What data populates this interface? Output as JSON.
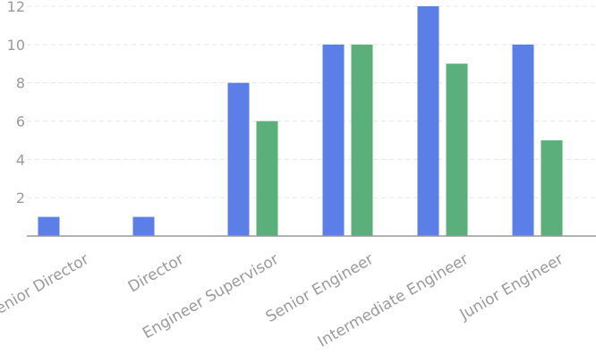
{
  "chart_data": {
    "type": "bar",
    "categories": [
      "Senior Director",
      "Director",
      "Engineer Supervisor",
      "Senior Engineer",
      "Intermediate Engineer",
      "Junior Engineer"
    ],
    "series": [
      {
        "color": "#5b7fe6",
        "values": [
          1,
          1,
          8,
          10,
          12,
          10
        ]
      },
      {
        "color": "#5aaf7b",
        "values": [
          0,
          0,
          6,
          10,
          9,
          5
        ]
      }
    ],
    "y_ticks": [
      "2",
      "4",
      "6",
      "8",
      "10",
      "12"
    ],
    "ylim": [
      0,
      12
    ],
    "grid": "horizontal dashed",
    "legend": "none",
    "colors": {
      "axis": "#999999",
      "tick_label": "#9a9a9a",
      "grid": "#e8e8e8"
    }
  }
}
